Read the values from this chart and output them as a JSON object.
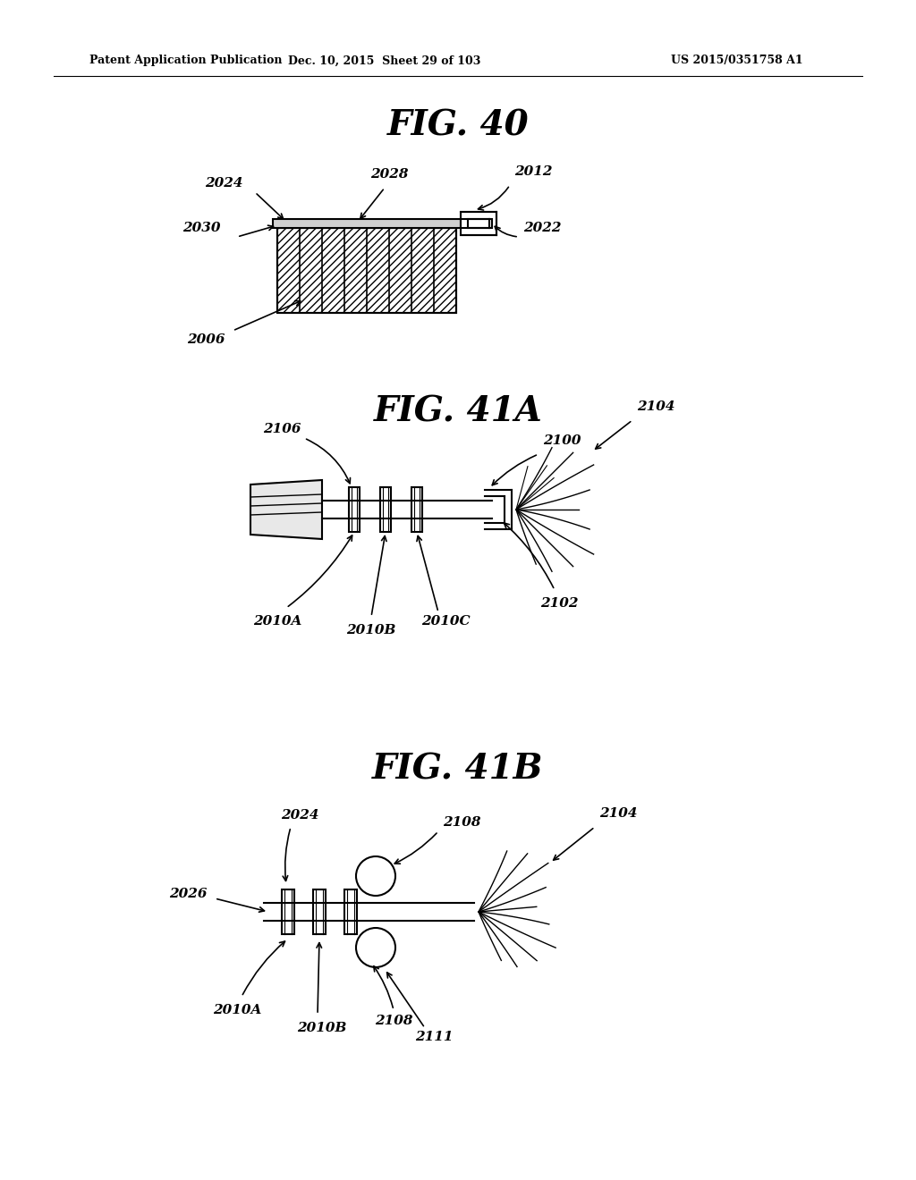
{
  "header_left": "Patent Application Publication",
  "header_mid": "Dec. 10, 2015  Sheet 29 of 103",
  "header_right": "US 2015/0351758 A1",
  "fig40_title": "FIG. 40",
  "fig41a_title": "FIG. 41A",
  "fig41b_title": "FIG. 41B",
  "background": "#ffffff",
  "line_color": "#000000"
}
